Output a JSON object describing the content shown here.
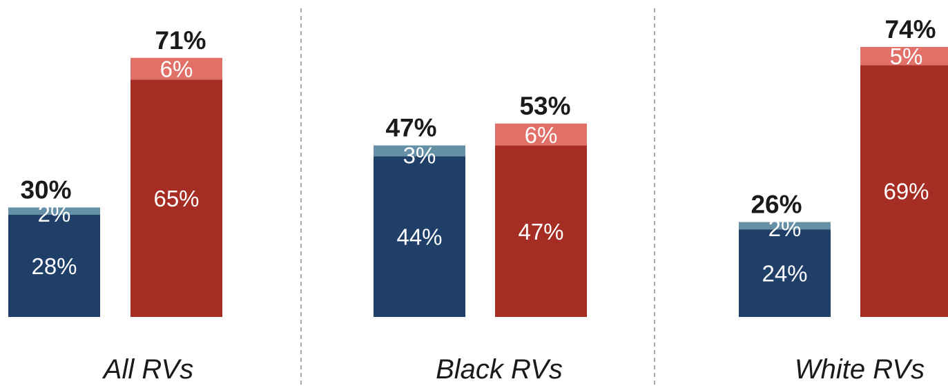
{
  "chart_data": {
    "type": "bar",
    "stacked": true,
    "panels": [
      {
        "label": "All RVs",
        "bars": [
          {
            "group": "blue",
            "total_label": "30%",
            "segments": [
              {
                "value": 28,
                "label": "28%",
                "color": "#1f3f68"
              },
              {
                "value": 2,
                "label": "2%",
                "color": "#6690a6"
              }
            ]
          },
          {
            "group": "red",
            "total_label": "71%",
            "segments": [
              {
                "value": 65,
                "label": "65%",
                "color": "#a52d24"
              },
              {
                "value": 6,
                "label": "6%",
                "color": "#e07068"
              }
            ]
          }
        ]
      },
      {
        "label": "Black RVs",
        "bars": [
          {
            "group": "blue",
            "total_label": "47%",
            "segments": [
              {
                "value": 44,
                "label": "44%",
                "color": "#1f3f68"
              },
              {
                "value": 3,
                "label": "3%",
                "color": "#6690a6"
              }
            ]
          },
          {
            "group": "red",
            "total_label": "53%",
            "segments": [
              {
                "value": 47,
                "label": "47%",
                "color": "#a52d24"
              },
              {
                "value": 6,
                "label": "6%",
                "color": "#e07068"
              }
            ]
          }
        ]
      },
      {
        "label": "White RVs",
        "bars": [
          {
            "group": "blue",
            "total_label": "26%",
            "segments": [
              {
                "value": 24,
                "label": "24%",
                "color": "#1f3f68"
              },
              {
                "value": 2,
                "label": "2%",
                "color": "#6690a6"
              }
            ]
          },
          {
            "group": "red",
            "total_label": "74%",
            "segments": [
              {
                "value": 69,
                "label": "69%",
                "color": "#a52d24"
              },
              {
                "value": 5,
                "label": "5%",
                "color": "#e07068"
              }
            ]
          }
        ]
      }
    ],
    "divider_color": "#aaaaaa",
    "grid": false,
    "legend": "none"
  }
}
